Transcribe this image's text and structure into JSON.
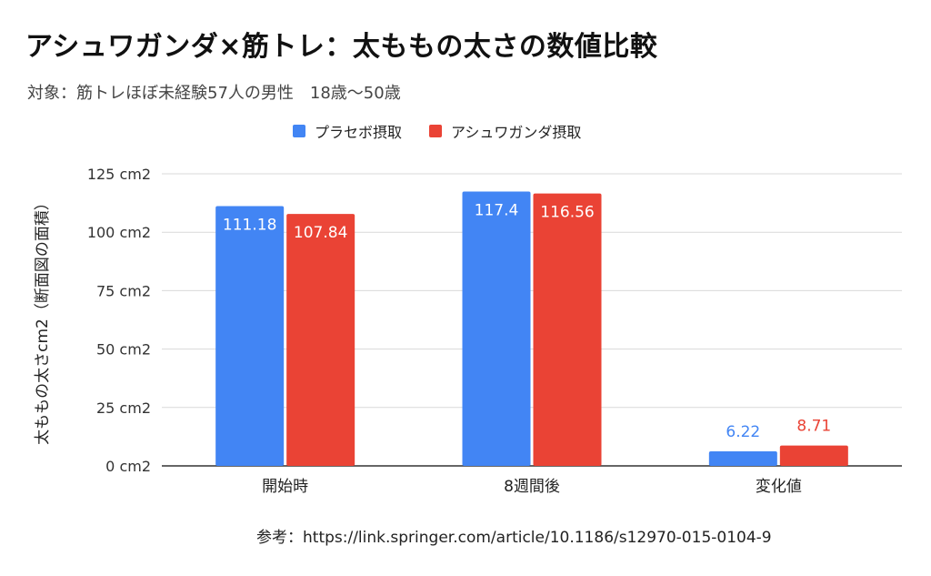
{
  "title": "アシュワガンダ×筋トレ：太ももの太さの数値比較",
  "subtitle": "対象：筋トレほぼ未経験57人の男性　18歳〜50歳",
  "source": "参考：https://link.springer.com/article/10.1186/s12970-015-0104-9",
  "colors": {
    "placebo": "#4285f4",
    "ashwagandha": "#ea4335"
  },
  "chart_data": {
    "type": "bar",
    "title": "アシュワガンダ×筋トレ：太ももの太さの数値比較",
    "ylabel": "太ももの太さcm2（断面図の面積）",
    "xlabel": "",
    "ylim": [
      0,
      125
    ],
    "yticks": [
      0,
      25,
      50,
      75,
      100,
      125
    ],
    "ytick_labels": [
      "0 cm2",
      "25 cm2",
      "50 cm2",
      "75 cm2",
      "100 cm2",
      "125 cm2"
    ],
    "categories": [
      "開始時",
      "8週間後",
      "変化値"
    ],
    "legend_position": "top-center",
    "series": [
      {
        "name": "プラセボ摂取",
        "values": [
          111.18,
          117.4,
          6.22
        ],
        "labels": [
          "111.18",
          "117.4",
          "6.22"
        ]
      },
      {
        "name": "アシュワガンダ摂取",
        "values": [
          107.84,
          116.56,
          8.71
        ],
        "labels": [
          "107.84",
          "116.56",
          "8.71"
        ]
      }
    ]
  }
}
